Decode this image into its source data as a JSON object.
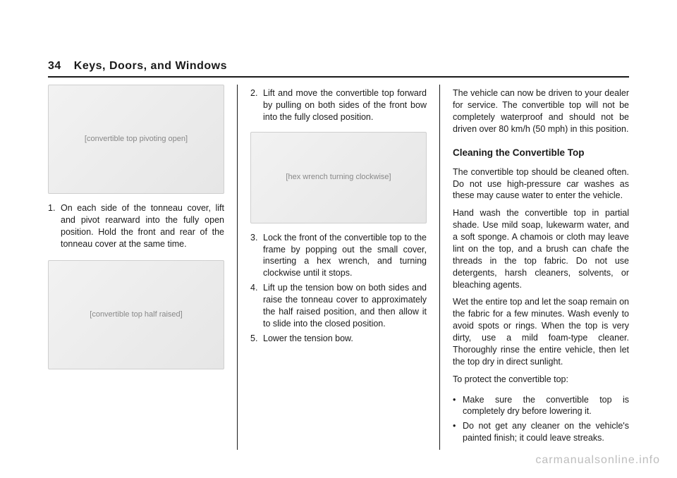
{
  "header": {
    "page_number": "34",
    "section_title": "Keys, Doors, and Windows"
  },
  "col1": {
    "illus1_alt": "[convertible top pivoting open]",
    "step1": "On each side of the tonneau cover, lift and pivot rearward into the fully open position. Hold the front and rear of the tonneau cover at the same time.",
    "illus2_alt": "[convertible top half raised]"
  },
  "col2": {
    "step2": "Lift and move the convertible top forward by pulling on both sides of the front bow into the fully closed position.",
    "illus_alt": "[hex wrench turning clockwise]",
    "step3": "Lock the front of the convertible top to the frame by popping out the small cover, inserting a hex wrench, and turning clockwise until it stops.",
    "step4": "Lift up the tension bow on both sides and raise the tonneau cover to approximately the half raised position, and then allow it to slide into the closed position.",
    "step5": "Lower the tension bow."
  },
  "col3": {
    "p1": "The vehicle can now be driven to your dealer for service. The convertible top will not be completely waterproof and should not be driven over 80 km/h (50 mph) in this position.",
    "h1": "Cleaning the Convertible Top",
    "p2": "The convertible top should be cleaned often. Do not use high-pressure car washes as these may cause water to enter the vehicle.",
    "p3": "Hand wash the convertible top in partial shade. Use mild soap, lukewarm water, and a soft sponge. A chamois or cloth may leave lint on the top, and a brush can chafe the threads in the top fabric. Do not use detergents, harsh cleaners, solvents, or bleaching agents.",
    "p4": "Wet the entire top and let the soap remain on the fabric for a few minutes. Wash evenly to avoid spots or rings. When the top is very dirty, use a mild foam-type cleaner. Thoroughly rinse the entire vehicle, then let the top dry in direct sunlight.",
    "p5": "To protect the convertible top:",
    "b1": "Make sure the convertible top is completely dry before lowering it.",
    "b2": "Do not get any cleaner on the vehicle's painted finish; it could leave streaks."
  },
  "watermark": "carmanualsonline.info"
}
